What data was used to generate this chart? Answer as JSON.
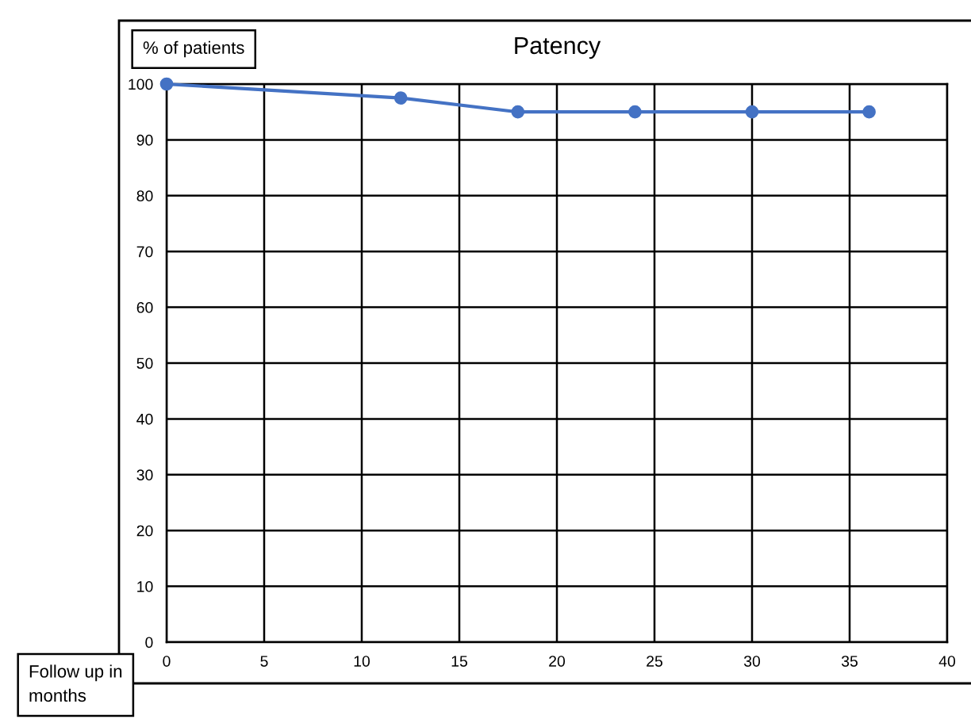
{
  "chart_data": {
    "type": "line",
    "title": "Patency",
    "ylabel": "% of patients",
    "xlabel": "Follow up in months",
    "x": [
      0,
      12,
      18,
      24,
      30,
      36
    ],
    "series": [
      {
        "color": "#4472c4",
        "values": [
          100,
          97.5,
          95,
          95,
          95,
          95
        ]
      }
    ],
    "xlim": [
      0,
      40
    ],
    "xticks": [
      0,
      5,
      10,
      15,
      20,
      25,
      30,
      35,
      40
    ],
    "ylim": [
      0,
      100
    ],
    "yticks": [
      0,
      10,
      20,
      30,
      40,
      50,
      60,
      70,
      80,
      90,
      100
    ],
    "grid": true,
    "marker": "circle",
    "line_style": "solid"
  }
}
